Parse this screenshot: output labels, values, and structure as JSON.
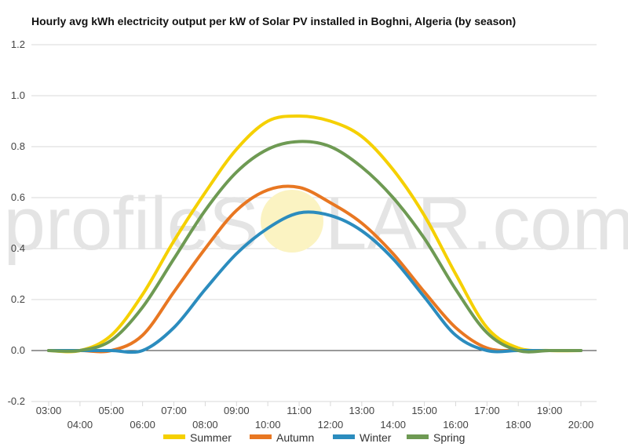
{
  "watermark": {
    "left": "profileS",
    "right": "LAR.com"
  },
  "chart_data": {
    "type": "line",
    "title": "Hourly avg kWh electricity output per kW of Solar PV installed in Boghni, Algeria (by season)",
    "xlabel": "",
    "ylabel": "",
    "x": [
      "03:00",
      "04:00",
      "05:00",
      "06:00",
      "07:00",
      "08:00",
      "09:00",
      "10:00",
      "11:00",
      "12:00",
      "13:00",
      "14:00",
      "15:00",
      "16:00",
      "17:00",
      "18:00",
      "19:00",
      "20:00"
    ],
    "ylim": [
      -0.2,
      1.2
    ],
    "yticks": [
      "-0.2",
      "0.0",
      "0.2",
      "0.4",
      "0.6",
      "0.8",
      "1.0",
      "1.2"
    ],
    "grid": true,
    "legend": "bottom",
    "series": [
      {
        "name": "Summer",
        "color": "#f5d000",
        "values": [
          0.0,
          0.0,
          0.06,
          0.22,
          0.43,
          0.62,
          0.79,
          0.9,
          0.92,
          0.9,
          0.84,
          0.71,
          0.53,
          0.3,
          0.09,
          0.01,
          0.0,
          0.0
        ]
      },
      {
        "name": "Autumn",
        "color": "#e87722",
        "values": [
          0.0,
          0.0,
          0.0,
          0.06,
          0.23,
          0.4,
          0.55,
          0.63,
          0.64,
          0.58,
          0.5,
          0.38,
          0.23,
          0.09,
          0.01,
          0.0,
          0.0,
          0.0
        ]
      },
      {
        "name": "Winter",
        "color": "#2b8cbe",
        "values": [
          0.0,
          0.0,
          0.0,
          0.0,
          0.09,
          0.24,
          0.38,
          0.48,
          0.54,
          0.53,
          0.47,
          0.36,
          0.21,
          0.06,
          0.0,
          0.0,
          0.0,
          0.0
        ]
      },
      {
        "name": "Spring",
        "color": "#6e9a53",
        "values": [
          0.0,
          0.0,
          0.04,
          0.17,
          0.36,
          0.55,
          0.7,
          0.79,
          0.82,
          0.8,
          0.72,
          0.6,
          0.44,
          0.24,
          0.07,
          0.0,
          0.0,
          0.0
        ]
      }
    ]
  }
}
